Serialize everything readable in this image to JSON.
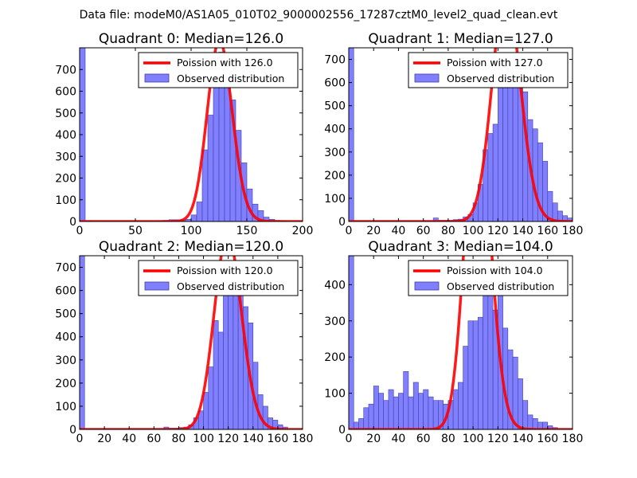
{
  "figure": {
    "suptitle": "Data file: modeM0/AS1A05_010T02_9000002556_17287cztM0_level2_quad_clean.evt"
  },
  "chart_data": [
    {
      "type": "bar",
      "title": "Quadrant 0: Median=126.0",
      "xlim": [
        0,
        200
      ],
      "ylim": [
        0,
        800
      ],
      "xticks": [
        0,
        50,
        100,
        150,
        200
      ],
      "yticks": [
        0,
        100,
        200,
        300,
        400,
        500,
        600,
        700
      ],
      "bin_width": 5,
      "bins": [
        [
          0,
          800
        ],
        [
          5,
          3
        ],
        [
          10,
          2
        ],
        [
          15,
          2
        ],
        [
          20,
          2
        ],
        [
          25,
          2
        ],
        [
          30,
          2
        ],
        [
          35,
          2
        ],
        [
          40,
          2
        ],
        [
          45,
          2
        ],
        [
          50,
          2
        ],
        [
          55,
          2
        ],
        [
          60,
          2
        ],
        [
          65,
          2
        ],
        [
          70,
          3
        ],
        [
          75,
          5
        ],
        [
          80,
          8
        ],
        [
          85,
          8
        ],
        [
          90,
          8
        ],
        [
          95,
          10
        ],
        [
          100,
          30
        ],
        [
          105,
          90
        ],
        [
          110,
          330
        ],
        [
          115,
          490
        ],
        [
          120,
          650
        ],
        [
          125,
          780
        ],
        [
          130,
          680
        ],
        [
          135,
          560
        ],
        [
          140,
          420
        ],
        [
          145,
          270
        ],
        [
          150,
          150
        ],
        [
          155,
          80
        ],
        [
          160,
          50
        ],
        [
          165,
          20
        ],
        [
          170,
          10
        ],
        [
          175,
          5
        ],
        [
          180,
          2
        ]
      ],
      "median": 126.0,
      "legend": {
        "poisson_label": "Poission with 126.0",
        "observed_label": "Observed distribution",
        "loc": "upper right"
      }
    },
    {
      "type": "bar",
      "title": "Quadrant 1: Median=127.0",
      "xlim": [
        0,
        180
      ],
      "ylim": [
        0,
        750
      ],
      "xticks": [
        0,
        20,
        40,
        60,
        80,
        100,
        120,
        140,
        160,
        180
      ],
      "yticks": [
        0,
        100,
        200,
        300,
        400,
        500,
        600,
        700
      ],
      "bin_width": 4,
      "bins": [
        [
          0,
          750
        ],
        [
          4,
          2
        ],
        [
          8,
          2
        ],
        [
          12,
          2
        ],
        [
          16,
          2
        ],
        [
          20,
          2
        ],
        [
          24,
          2
        ],
        [
          28,
          2
        ],
        [
          32,
          2
        ],
        [
          36,
          2
        ],
        [
          40,
          2
        ],
        [
          44,
          2
        ],
        [
          48,
          2
        ],
        [
          52,
          2
        ],
        [
          56,
          2
        ],
        [
          60,
          2
        ],
        [
          64,
          3
        ],
        [
          68,
          15
        ],
        [
          72,
          5
        ],
        [
          76,
          5
        ],
        [
          80,
          5
        ],
        [
          84,
          8
        ],
        [
          88,
          10
        ],
        [
          92,
          20
        ],
        [
          96,
          30
        ],
        [
          100,
          80
        ],
        [
          104,
          160
        ],
        [
          108,
          310
        ],
        [
          112,
          380
        ],
        [
          116,
          420
        ],
        [
          120,
          590
        ],
        [
          124,
          610
        ],
        [
          128,
          710
        ],
        [
          132,
          700
        ],
        [
          136,
          640
        ],
        [
          140,
          560
        ],
        [
          144,
          440
        ],
        [
          148,
          400
        ],
        [
          152,
          340
        ],
        [
          156,
          260
        ],
        [
          160,
          130
        ],
        [
          164,
          80
        ],
        [
          168,
          45
        ],
        [
          172,
          25
        ],
        [
          176,
          15
        ],
        [
          180,
          8
        ]
      ],
      "median": 127.0,
      "legend": {
        "poisson_label": "Poission with 127.0",
        "observed_label": "Observed distribution",
        "loc": "upper right"
      }
    },
    {
      "type": "bar",
      "title": "Quadrant 2: Median=120.0",
      "xlim": [
        0,
        180
      ],
      "ylim": [
        0,
        750
      ],
      "xticks": [
        0,
        20,
        40,
        60,
        80,
        100,
        120,
        140,
        160,
        180
      ],
      "yticks": [
        0,
        100,
        200,
        300,
        400,
        500,
        600,
        700
      ],
      "bin_width": 4,
      "bins": [
        [
          0,
          750
        ],
        [
          4,
          2
        ],
        [
          8,
          2
        ],
        [
          12,
          2
        ],
        [
          16,
          2
        ],
        [
          20,
          2
        ],
        [
          24,
          2
        ],
        [
          28,
          2
        ],
        [
          32,
          2
        ],
        [
          36,
          2
        ],
        [
          40,
          2
        ],
        [
          44,
          2
        ],
        [
          48,
          2
        ],
        [
          52,
          2
        ],
        [
          56,
          2
        ],
        [
          60,
          2
        ],
        [
          64,
          2
        ],
        [
          68,
          10
        ],
        [
          72,
          5
        ],
        [
          76,
          5
        ],
        [
          80,
          8
        ],
        [
          84,
          10
        ],
        [
          88,
          20
        ],
        [
          92,
          50
        ],
        [
          96,
          80
        ],
        [
          100,
          160
        ],
        [
          104,
          270
        ],
        [
          108,
          470
        ],
        [
          112,
          420
        ],
        [
          116,
          630
        ],
        [
          120,
          710
        ],
        [
          124,
          630
        ],
        [
          128,
          600
        ],
        [
          132,
          530
        ],
        [
          136,
          460
        ],
        [
          140,
          290
        ],
        [
          144,
          150
        ],
        [
          148,
          100
        ],
        [
          152,
          50
        ],
        [
          156,
          40
        ],
        [
          160,
          20
        ],
        [
          164,
          10
        ]
      ],
      "median": 120.0,
      "legend": {
        "poisson_label": "Poission with 120.0",
        "observed_label": "Observed distribution",
        "loc": "upper right"
      }
    },
    {
      "type": "bar",
      "title": "Quadrant 3: Median=104.0",
      "xlim": [
        0,
        180
      ],
      "ylim": [
        0,
        480
      ],
      "xticks": [
        0,
        20,
        40,
        60,
        80,
        100,
        120,
        140,
        160,
        180
      ],
      "yticks": [
        0,
        100,
        200,
        300,
        400
      ],
      "bin_width": 4,
      "bins": [
        [
          0,
          480
        ],
        [
          4,
          20
        ],
        [
          8,
          30
        ],
        [
          12,
          60
        ],
        [
          16,
          70
        ],
        [
          20,
          120
        ],
        [
          24,
          100
        ],
        [
          28,
          80
        ],
        [
          32,
          110
        ],
        [
          36,
          90
        ],
        [
          40,
          100
        ],
        [
          44,
          160
        ],
        [
          48,
          90
        ],
        [
          52,
          130
        ],
        [
          56,
          100
        ],
        [
          60,
          110
        ],
        [
          64,
          90
        ],
        [
          68,
          80
        ],
        [
          72,
          80
        ],
        [
          76,
          70
        ],
        [
          80,
          80
        ],
        [
          84,
          110
        ],
        [
          88,
          130
        ],
        [
          92,
          230
        ],
        [
          96,
          300
        ],
        [
          100,
          300
        ],
        [
          104,
          310
        ],
        [
          108,
          420
        ],
        [
          112,
          420
        ],
        [
          116,
          330
        ],
        [
          120,
          420
        ],
        [
          124,
          280
        ],
        [
          128,
          220
        ],
        [
          132,
          200
        ],
        [
          136,
          140
        ],
        [
          140,
          80
        ],
        [
          144,
          40
        ],
        [
          148,
          30
        ],
        [
          152,
          20
        ],
        [
          156,
          20
        ],
        [
          160,
          10
        ],
        [
          164,
          5
        ]
      ],
      "median": 104.0,
      "legend": {
        "poisson_label": "Poission with 104.0",
        "observed_label": "Observed distribution",
        "loc": "upper right"
      }
    }
  ],
  "colors": {
    "bar_fill": "#7f7fff",
    "bar_stroke": "#3f3f9f",
    "line": "#ff0000",
    "axis": "#000000"
  }
}
